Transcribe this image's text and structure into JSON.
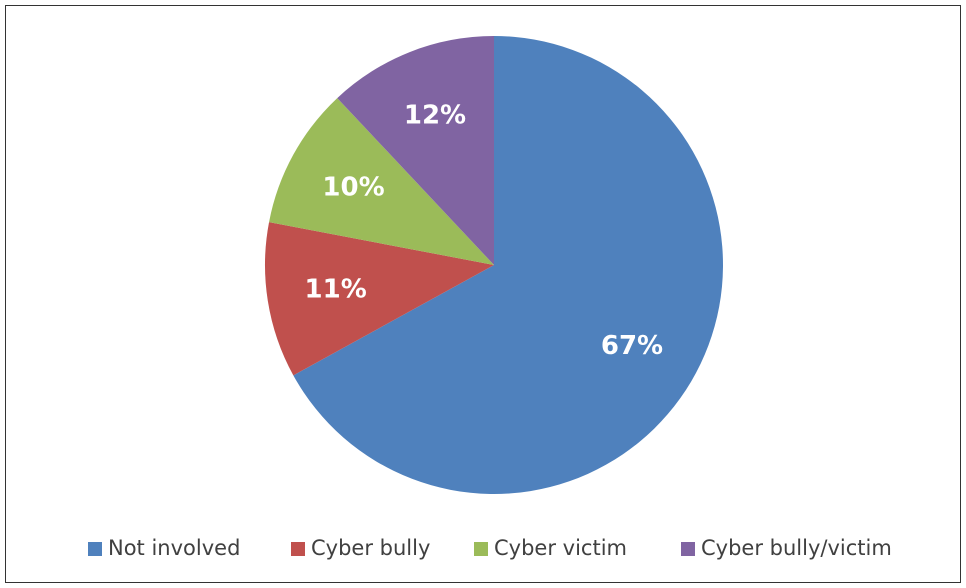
{
  "chart_data": {
    "type": "pie",
    "categories": [
      "Not involved",
      "Cyber bully",
      "Cyber victim",
      "Cyber bully/victim"
    ],
    "values": [
      67,
      11,
      10,
      12
    ],
    "value_labels": [
      "67%",
      "11%",
      "10%",
      "12%"
    ],
    "colors": [
      "#4f81bd",
      "#c0504d",
      "#9bbb59",
      "#8064a2"
    ],
    "legend": "bottom"
  }
}
